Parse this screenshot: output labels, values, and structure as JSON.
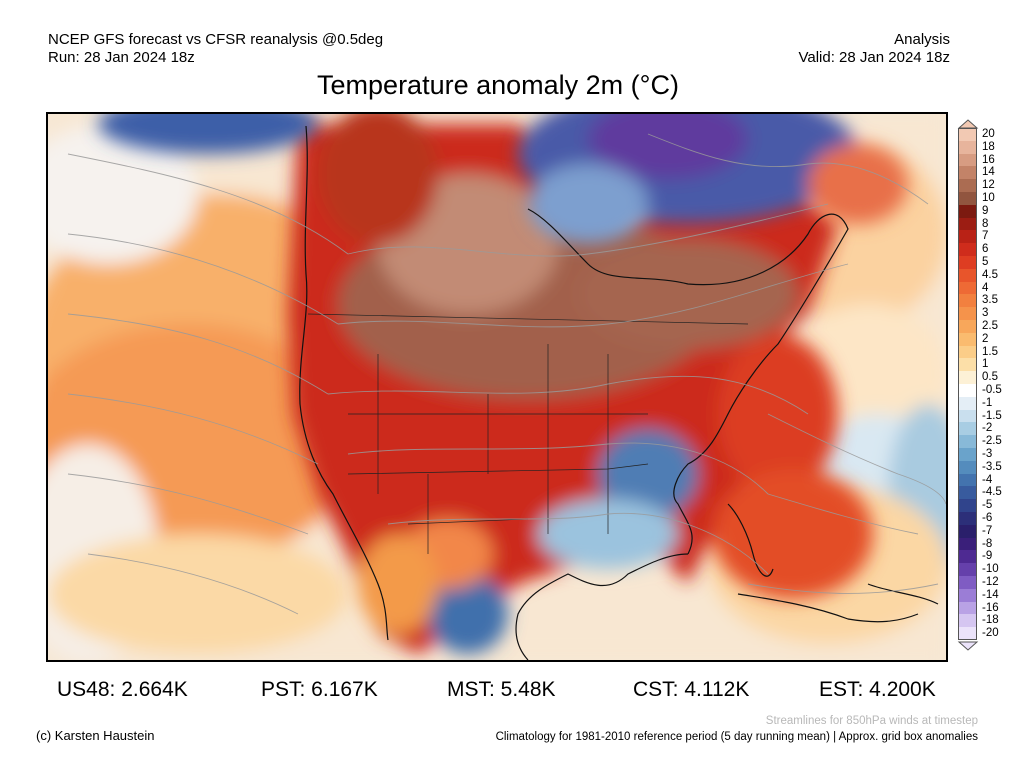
{
  "header": {
    "line1": "NCEP GFS forecast vs CFSR reanalysis @0.5deg",
    "line2": "Run: 28 Jan 2024 18z",
    "right1": "Analysis",
    "right2": "Valid: 28 Jan 2024 18z"
  },
  "title": "Temperature anomaly 2m (°C)",
  "colorbar": {
    "levels": [
      {
        "label": "20",
        "color": "#f2c9b3"
      },
      {
        "label": "18",
        "color": "#e7b49c"
      },
      {
        "label": "16",
        "color": "#d79c82"
      },
      {
        "label": "14",
        "color": "#c38368"
      },
      {
        "label": "12",
        "color": "#ab6c52"
      },
      {
        "label": "10",
        "color": "#91553f"
      },
      {
        "label": "9",
        "color": "#7c1a10"
      },
      {
        "label": "8",
        "color": "#9c1d13"
      },
      {
        "label": "7",
        "color": "#b92216"
      },
      {
        "label": "6",
        "color": "#cf2c1c"
      },
      {
        "label": "5",
        "color": "#de3d22"
      },
      {
        "label": "4.5",
        "color": "#e8552b"
      },
      {
        "label": "4",
        "color": "#ee6a35"
      },
      {
        "label": "3.5",
        "color": "#f2803f"
      },
      {
        "label": "3",
        "color": "#f5934b"
      },
      {
        "label": "2.5",
        "color": "#f8a75b"
      },
      {
        "label": "2",
        "color": "#fabb6f"
      },
      {
        "label": "1.5",
        "color": "#fbcd88"
      },
      {
        "label": "1",
        "color": "#fcdfa8"
      },
      {
        "label": "0.5",
        "color": "#fdf1d6"
      },
      {
        "label": "-0.5",
        "color": "#ffffff"
      },
      {
        "label": "-1",
        "color": "#e4eef6"
      },
      {
        "label": "-1.5",
        "color": "#c9dfee"
      },
      {
        "label": "-2",
        "color": "#a8cde3"
      },
      {
        "label": "-2.5",
        "color": "#88b9d8"
      },
      {
        "label": "-3",
        "color": "#6aa3cb"
      },
      {
        "label": "-3.5",
        "color": "#548cbd"
      },
      {
        "label": "-4",
        "color": "#4373ae"
      },
      {
        "label": "-4.5",
        "color": "#385b9e"
      },
      {
        "label": "-5",
        "color": "#30448c"
      },
      {
        "label": "-6",
        "color": "#2c2f79"
      },
      {
        "label": "-7",
        "color": "#2a1f6b"
      },
      {
        "label": "-8",
        "color": "#3a1f7a"
      },
      {
        "label": "-9",
        "color": "#4e2a92"
      },
      {
        "label": "-10",
        "color": "#6540ab"
      },
      {
        "label": "-12",
        "color": "#7f5cc3"
      },
      {
        "label": "-14",
        "color": "#9b7dd6"
      },
      {
        "label": "-16",
        "color": "#b9a2e5"
      },
      {
        "label": "-18",
        "color": "#d5c6f1"
      },
      {
        "label": "-20",
        "color": "#ebe3fa"
      }
    ]
  },
  "stats": [
    {
      "label": "US48: 2.664K"
    },
    {
      "label": "PST: 6.167K"
    },
    {
      "label": "MST: 5.48K"
    },
    {
      "label": "CST: 4.112K"
    },
    {
      "label": "EST: 4.200K"
    }
  ],
  "footer": {
    "credit": "(c) Karsten Haustein",
    "streamline_note": "Streamlines for 850hPa winds at timestep",
    "climatology": "Climatology for 1981-2010 reference period (5 day running mean) | Approx. grid box anomalies"
  }
}
